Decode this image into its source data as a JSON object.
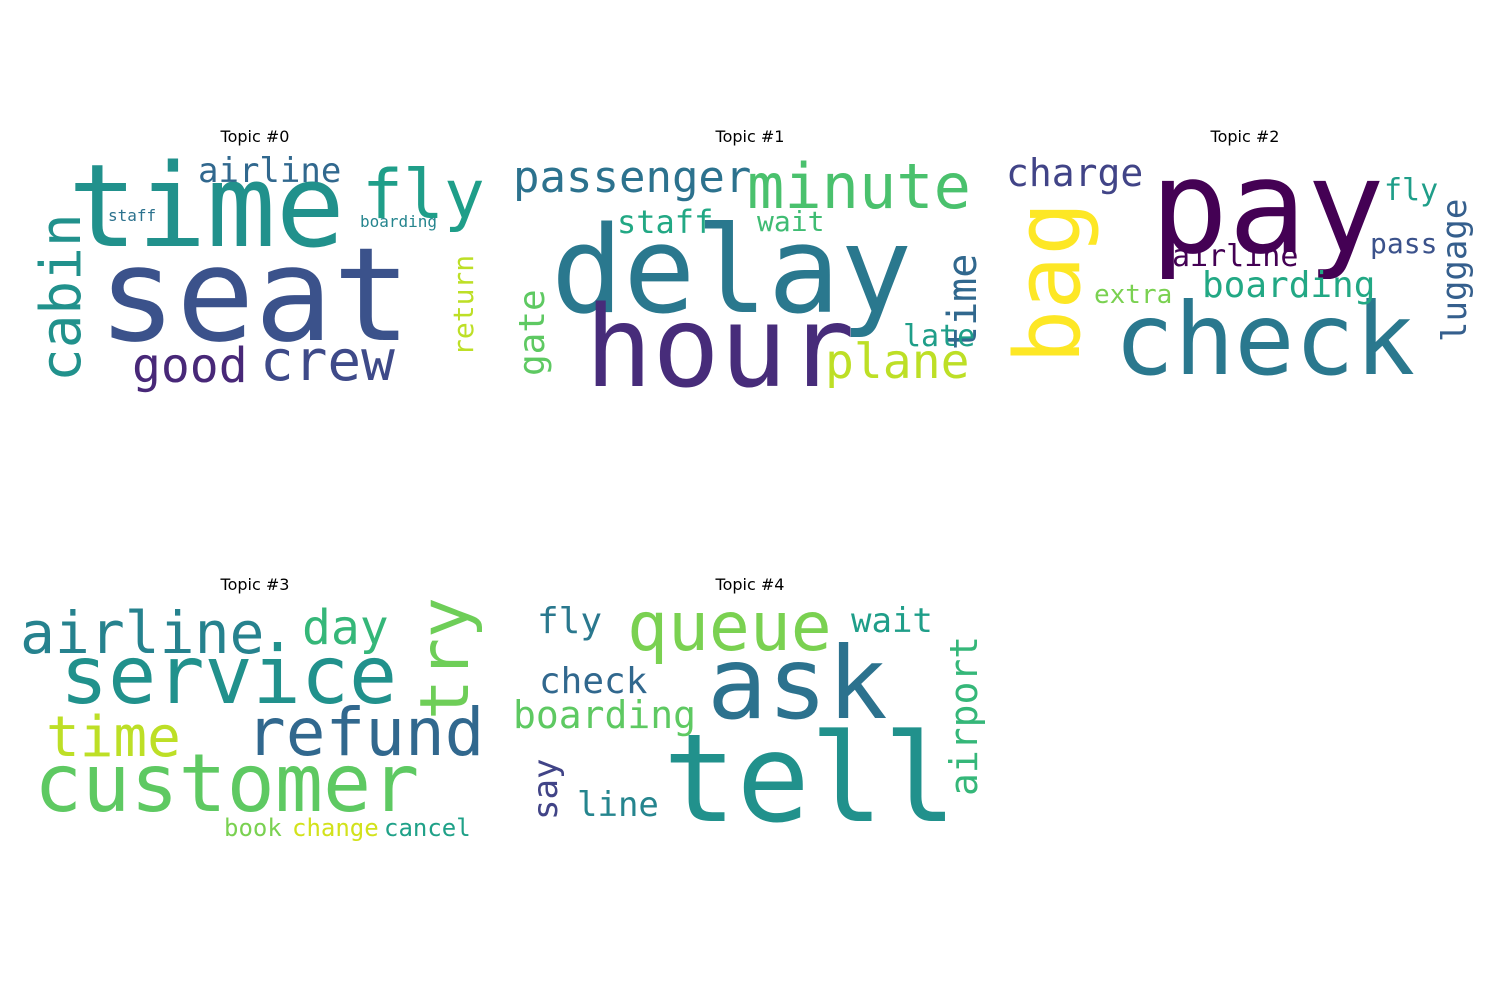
{
  "panels": [
    {
      "title": "Topic #0",
      "words": [
        {
          "text": "seat",
          "color": "#3b528b"
        },
        {
          "text": "time",
          "color": "#21918c"
        },
        {
          "text": "fly",
          "color": "#1f9e89"
        },
        {
          "text": "airline",
          "color": "#31688e"
        },
        {
          "text": "cabin",
          "color": "#21918c"
        },
        {
          "text": "staff",
          "color": "#2c728e"
        },
        {
          "text": "boarding",
          "color": "#25858e"
        },
        {
          "text": "crew",
          "color": "#3e4a89"
        },
        {
          "text": "good",
          "color": "#482878"
        },
        {
          "text": "return",
          "color": "#bddf26"
        }
      ]
    },
    {
      "title": "Topic #1",
      "words": [
        {
          "text": "delay",
          "color": "#2a788e"
        },
        {
          "text": "hour",
          "color": "#472c7a"
        },
        {
          "text": "passenger",
          "color": "#2c728e"
        },
        {
          "text": "minute",
          "color": "#4ac16d"
        },
        {
          "text": "staff",
          "color": "#22a884"
        },
        {
          "text": "wait",
          "color": "#3fbc73"
        },
        {
          "text": "time",
          "color": "#31688e"
        },
        {
          "text": "gate",
          "color": "#5ec962"
        },
        {
          "text": "late",
          "color": "#1f9e89"
        },
        {
          "text": "plane",
          "color": "#bddf26"
        }
      ]
    },
    {
      "title": "Topic #2",
      "words": [
        {
          "text": "pay",
          "color": "#440154"
        },
        {
          "text": "check",
          "color": "#2a788e"
        },
        {
          "text": "bag",
          "color": "#fde725"
        },
        {
          "text": "charge",
          "color": "#414487"
        },
        {
          "text": "fly",
          "color": "#1f9e89"
        },
        {
          "text": "airline",
          "color": "#440154"
        },
        {
          "text": "pass",
          "color": "#3b528b"
        },
        {
          "text": "boarding",
          "color": "#22a884"
        },
        {
          "text": "extra",
          "color": "#7ad151"
        },
        {
          "text": "luggage",
          "color": "#355f8d"
        }
      ]
    },
    {
      "title": "Topic #3",
      "words": [
        {
          "text": "airline",
          "color": "#26828e"
        },
        {
          "text": "day",
          "color": "#35b779"
        },
        {
          "text": "try",
          "color": "#6ece58"
        },
        {
          "text": "service",
          "color": "#21918c"
        },
        {
          "text": "time",
          "color": "#bddf26"
        },
        {
          "text": "refund",
          "color": "#31688e"
        },
        {
          "text": "customer",
          "color": "#5ec962"
        },
        {
          "text": "book",
          "color": "#7ad151"
        },
        {
          "text": "change",
          "color": "#d2e21b"
        },
        {
          "text": "cancel",
          "color": "#1fa188"
        }
      ]
    },
    {
      "title": "Topic #4",
      "words": [
        {
          "text": "queue",
          "color": "#7ad151"
        },
        {
          "text": "fly",
          "color": "#2a788e"
        },
        {
          "text": "wait",
          "color": "#1f9e89"
        },
        {
          "text": "ask",
          "color": "#2c728e"
        },
        {
          "text": "check",
          "color": "#31688e"
        },
        {
          "text": "boarding",
          "color": "#5ec962"
        },
        {
          "text": "airport",
          "color": "#35b779"
        },
        {
          "text": "tell",
          "color": "#21918c"
        },
        {
          "text": "say",
          "color": "#414487"
        },
        {
          "text": "line",
          "color": "#25858e"
        }
      ]
    }
  ]
}
